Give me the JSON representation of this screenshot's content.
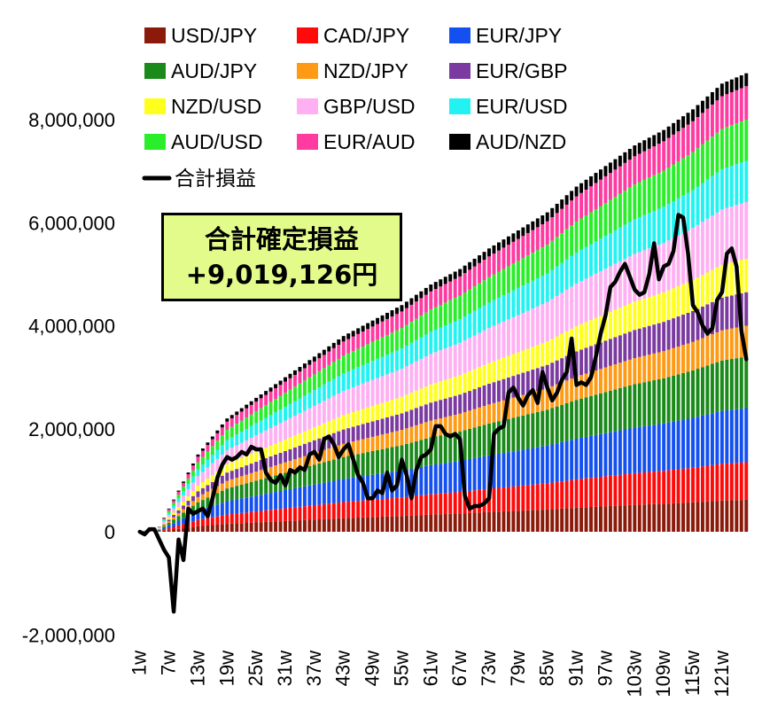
{
  "chart_data": {
    "type": "bar",
    "stacked": true,
    "num_weeks": 126,
    "x_tick_labels": [
      "1w",
      "7w",
      "13w",
      "19w",
      "25w",
      "31w",
      "37w",
      "43w",
      "49w",
      "55w",
      "61w",
      "67w",
      "73w",
      "79w",
      "85w",
      "91w",
      "97w",
      "103w",
      "109w",
      "115w",
      "121w"
    ],
    "x_tick_every": 6,
    "y_ticks": [
      -2000000,
      0,
      2000000,
      4000000,
      6000000,
      8000000
    ],
    "y_tick_labels": [
      "-2,000,000",
      "0",
      "2,000,000",
      "4,000,000",
      "6,000,000",
      "8,000,000"
    ],
    "ylim": [
      -2000000,
      8600000
    ],
    "legend_placement": "top",
    "series": [
      {
        "name": "USD/JPY",
        "color": "#8b1a0a",
        "final": 620000
      },
      {
        "name": "CAD/JPY",
        "color": "#ff0a0a",
        "final": 730000
      },
      {
        "name": "EUR/JPY",
        "color": "#1450f0",
        "final": 1050000
      },
      {
        "name": "AUD/JPY",
        "color": "#1a8a1a",
        "final": 1000000
      },
      {
        "name": "NZD/JPY",
        "color": "#ff9a14",
        "final": 600000
      },
      {
        "name": "EUR/GBP",
        "color": "#7a3aa0",
        "final": 650000
      },
      {
        "name": "NZD/USD",
        "color": "#ffff1e",
        "final": 650000
      },
      {
        "name": "GBP/USD",
        "color": "#ffb0f2",
        "final": 1100000
      },
      {
        "name": "EUR/USD",
        "color": "#22f2f2",
        "final": 800000
      },
      {
        "name": "AUD/USD",
        "color": "#2aee2a",
        "final": 800000
      },
      {
        "name": "EUR/AUD",
        "color": "#ff3aa0",
        "final": 650000
      },
      {
        "name": "AUD/NZD",
        "color": "#000000",
        "final": 250000
      }
    ],
    "cumulative_total_checkpoints": [
      [
        1,
        0
      ],
      [
        5,
        100000
      ],
      [
        9,
        800000
      ],
      [
        13,
        1500000
      ],
      [
        19,
        2200000
      ],
      [
        25,
        2600000
      ],
      [
        31,
        3000000
      ],
      [
        37,
        3400000
      ],
      [
        43,
        3800000
      ],
      [
        49,
        4100000
      ],
      [
        55,
        4400000
      ],
      [
        61,
        4800000
      ],
      [
        67,
        5100000
      ],
      [
        73,
        5500000
      ],
      [
        79,
        5850000
      ],
      [
        85,
        6200000
      ],
      [
        91,
        6700000
      ],
      [
        97,
        7100000
      ],
      [
        103,
        7500000
      ],
      [
        109,
        7800000
      ],
      [
        115,
        8200000
      ],
      [
        121,
        8700000
      ],
      [
        126,
        8900000
      ]
    ],
    "line_series": {
      "name": "合計損益",
      "color": "#000000",
      "values": [
        0,
        -50000,
        50000,
        50000,
        -150000,
        -350000,
        -500000,
        -1550000,
        -150000,
        -550000,
        450000,
        350000,
        400000,
        450000,
        300000,
        650000,
        1050000,
        1300000,
        1450000,
        1400000,
        1450000,
        1550000,
        1500000,
        1650000,
        1600000,
        1600000,
        1150000,
        1000000,
        950000,
        1100000,
        900000,
        1200000,
        1150000,
        1250000,
        1200000,
        1500000,
        1550000,
        1400000,
        1800000,
        1850000,
        1700000,
        1450000,
        1600000,
        1700000,
        1400000,
        1100000,
        950000,
        650000,
        650000,
        800000,
        750000,
        1150000,
        800000,
        900000,
        1400000,
        1100000,
        650000,
        1200000,
        1450000,
        1500000,
        1600000,
        2050000,
        2050000,
        1900000,
        1850000,
        1900000,
        1800000,
        700000,
        450000,
        500000,
        500000,
        550000,
        650000,
        1900000,
        2000000,
        2050000,
        2700000,
        2800000,
        2600000,
        2450000,
        2650000,
        2750000,
        2500000,
        3100000,
        2800000,
        2550000,
        2700000,
        2950000,
        3100000,
        3750000,
        2850000,
        2900000,
        2850000,
        3000000,
        3400000,
        3850000,
        4200000,
        4750000,
        4850000,
        5050000,
        5200000,
        4950000,
        4700000,
        4600000,
        4650000,
        5000000,
        5600000,
        4900000,
        5150000,
        5200000,
        5450000,
        6150000,
        6100000,
        5400000,
        4400000,
        4250000,
        4000000,
        3850000,
        3950000,
        4500000,
        4650000,
        5400000,
        5500000,
        5150000,
        3900000,
        3350000
      ]
    },
    "annotation": {
      "line1": "合計確定損益",
      "line2": "+9,019,126円"
    }
  }
}
